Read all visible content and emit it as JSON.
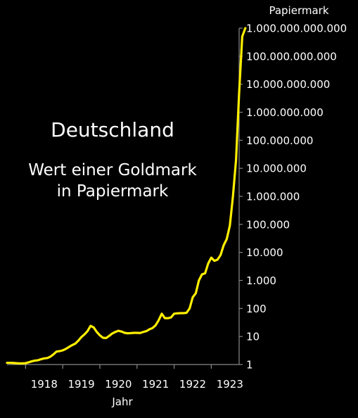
{
  "chart_data": {
    "type": "line",
    "title": "Deutschland",
    "subtitle_lines": [
      "Wert einer Goldmark",
      "in Papiermark"
    ],
    "xlabel": "Jahr",
    "ylabel": "Papiermark",
    "yscale": "log",
    "ylim": [
      1,
      1000000000000
    ],
    "xlim": [
      1917.5,
      1923.75
    ],
    "x_ticks": [
      "1918",
      "1919",
      "1920",
      "1921",
      "1922",
      "1923"
    ],
    "y_ticks": [
      "1",
      "10",
      "100",
      "1.000",
      "10.000",
      "100.000",
      "1.000.000",
      "10.000.000",
      "100.000.000",
      "1.000.000.000",
      "10.000.000.000",
      "100.000.000.000",
      "1.000.000.000.000"
    ],
    "grid": false,
    "line_color": "#ffee00",
    "series": [
      {
        "x": [
          "1917-07",
          "1917-08",
          "1917-09",
          "1917-10",
          "1917-11",
          "1917-12",
          "1918-01",
          "1918-02",
          "1918-03",
          "1918-04",
          "1918-05",
          "1918-06",
          "1918-07",
          "1918-08",
          "1918-09",
          "1918-10",
          "1918-11",
          "1918-12",
          "1919-01",
          "1919-02",
          "1919-03",
          "1919-04",
          "1919-05",
          "1919-06",
          "1919-07",
          "1919-08",
          "1919-09",
          "1919-10",
          "1919-11",
          "1919-12",
          "1920-01",
          "1920-02",
          "1920-03",
          "1920-04",
          "1920-05",
          "1920-06",
          "1920-07",
          "1920-08",
          "1920-09",
          "1920-10",
          "1920-11",
          "1920-12",
          "1921-01",
          "1921-02",
          "1921-03",
          "1921-04",
          "1921-05",
          "1921-06",
          "1921-07",
          "1921-08",
          "1921-09",
          "1921-10",
          "1921-11",
          "1921-12",
          "1922-01",
          "1922-02",
          "1922-03",
          "1922-04",
          "1922-05",
          "1922-06",
          "1922-07",
          "1922-08",
          "1922-09",
          "1922-10",
          "1922-11",
          "1922-12",
          "1923-01",
          "1923-02",
          "1923-03",
          "1923-04",
          "1923-05",
          "1923-06",
          "1923-07",
          "1923-08",
          "1923-09",
          "1923-10",
          "1923-11",
          "1923-12"
        ],
        "y": [
          1.15,
          1.15,
          1.14,
          1.12,
          1.1,
          1.1,
          1.12,
          1.2,
          1.3,
          1.38,
          1.42,
          1.55,
          1.65,
          1.7,
          1.9,
          2.3,
          2.9,
          3.0,
          3.2,
          3.6,
          4.2,
          4.9,
          5.5,
          7.0,
          9.5,
          11.8,
          15.5,
          24.0,
          21.0,
          14.5,
          11.0,
          9.0,
          8.8,
          10.5,
          12.8,
          14.5,
          16.0,
          15.0,
          13.5,
          13.0,
          13.2,
          13.5,
          13.5,
          13.3,
          14.5,
          15.5,
          18.0,
          20.0,
          25.0,
          38.0,
          65.0,
          45.0,
          45.0,
          48.0,
          65.0,
          67.0,
          68.0,
          68.0,
          70.0,
          100.0,
          250.0,
          350.0,
          1000.0,
          1650.0,
          1800.0,
          4000.0,
          6500.0,
          5000.0,
          5500.0,
          8000.0,
          18000.0,
          30000.0,
          90000.0,
          1000000.0,
          20000000.0,
          5000000000.0,
          500000000000.0,
          1000000000000.0
        ]
      }
    ]
  }
}
